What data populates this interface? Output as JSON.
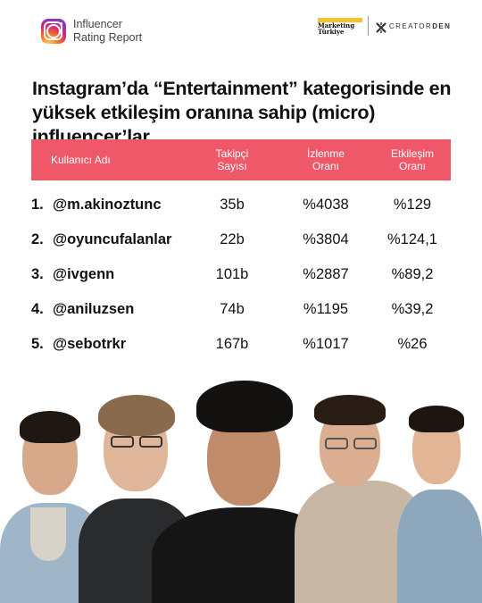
{
  "header": {
    "report_line1": "Influencer",
    "report_line2": "Rating Report",
    "partner1_line1": "Marketing",
    "partner1_line2": "Türkiye",
    "partner2_icon": "creatorden-icon",
    "partner2_name_light": "CREATOR",
    "partner2_name_bold": "DEN",
    "instagram_icon": "instagram-icon"
  },
  "title": "Instagram’da “Entertainment” kategorisinde en yüksek etkileşim oranına sahip (micro) influencer’lar",
  "table": {
    "columns": {
      "username": "Kullanıcı Adı",
      "followers": "Takipçi Sayısı",
      "views": "İzlenme Oranı",
      "engagement": "Etkileşim Oranı"
    },
    "rows": [
      {
        "rank": "1.",
        "username": "@m.akinoztunc",
        "followers": "35b",
        "views": "%4038",
        "engagement": "%129"
      },
      {
        "rank": "2.",
        "username": "@oyuncufalanlar",
        "followers": "22b",
        "views": "%3804",
        "engagement": "%124,1"
      },
      {
        "rank": "3.",
        "username": "@ivgenn",
        "followers": "101b",
        "views": "%2887",
        "engagement": "%89,2"
      },
      {
        "rank": "4.",
        "username": "@aniluzsen",
        "followers": "74b",
        "views": "%1195",
        "engagement": "%39,2"
      },
      {
        "rank": "5.",
        "username": "@sebotrkr",
        "followers": "167b",
        "views": "%1017",
        "engagement": "%26"
      }
    ]
  },
  "colors": {
    "header_bg": "#ef5868",
    "accent_yellow": "#f2c230",
    "text": "#111111"
  }
}
